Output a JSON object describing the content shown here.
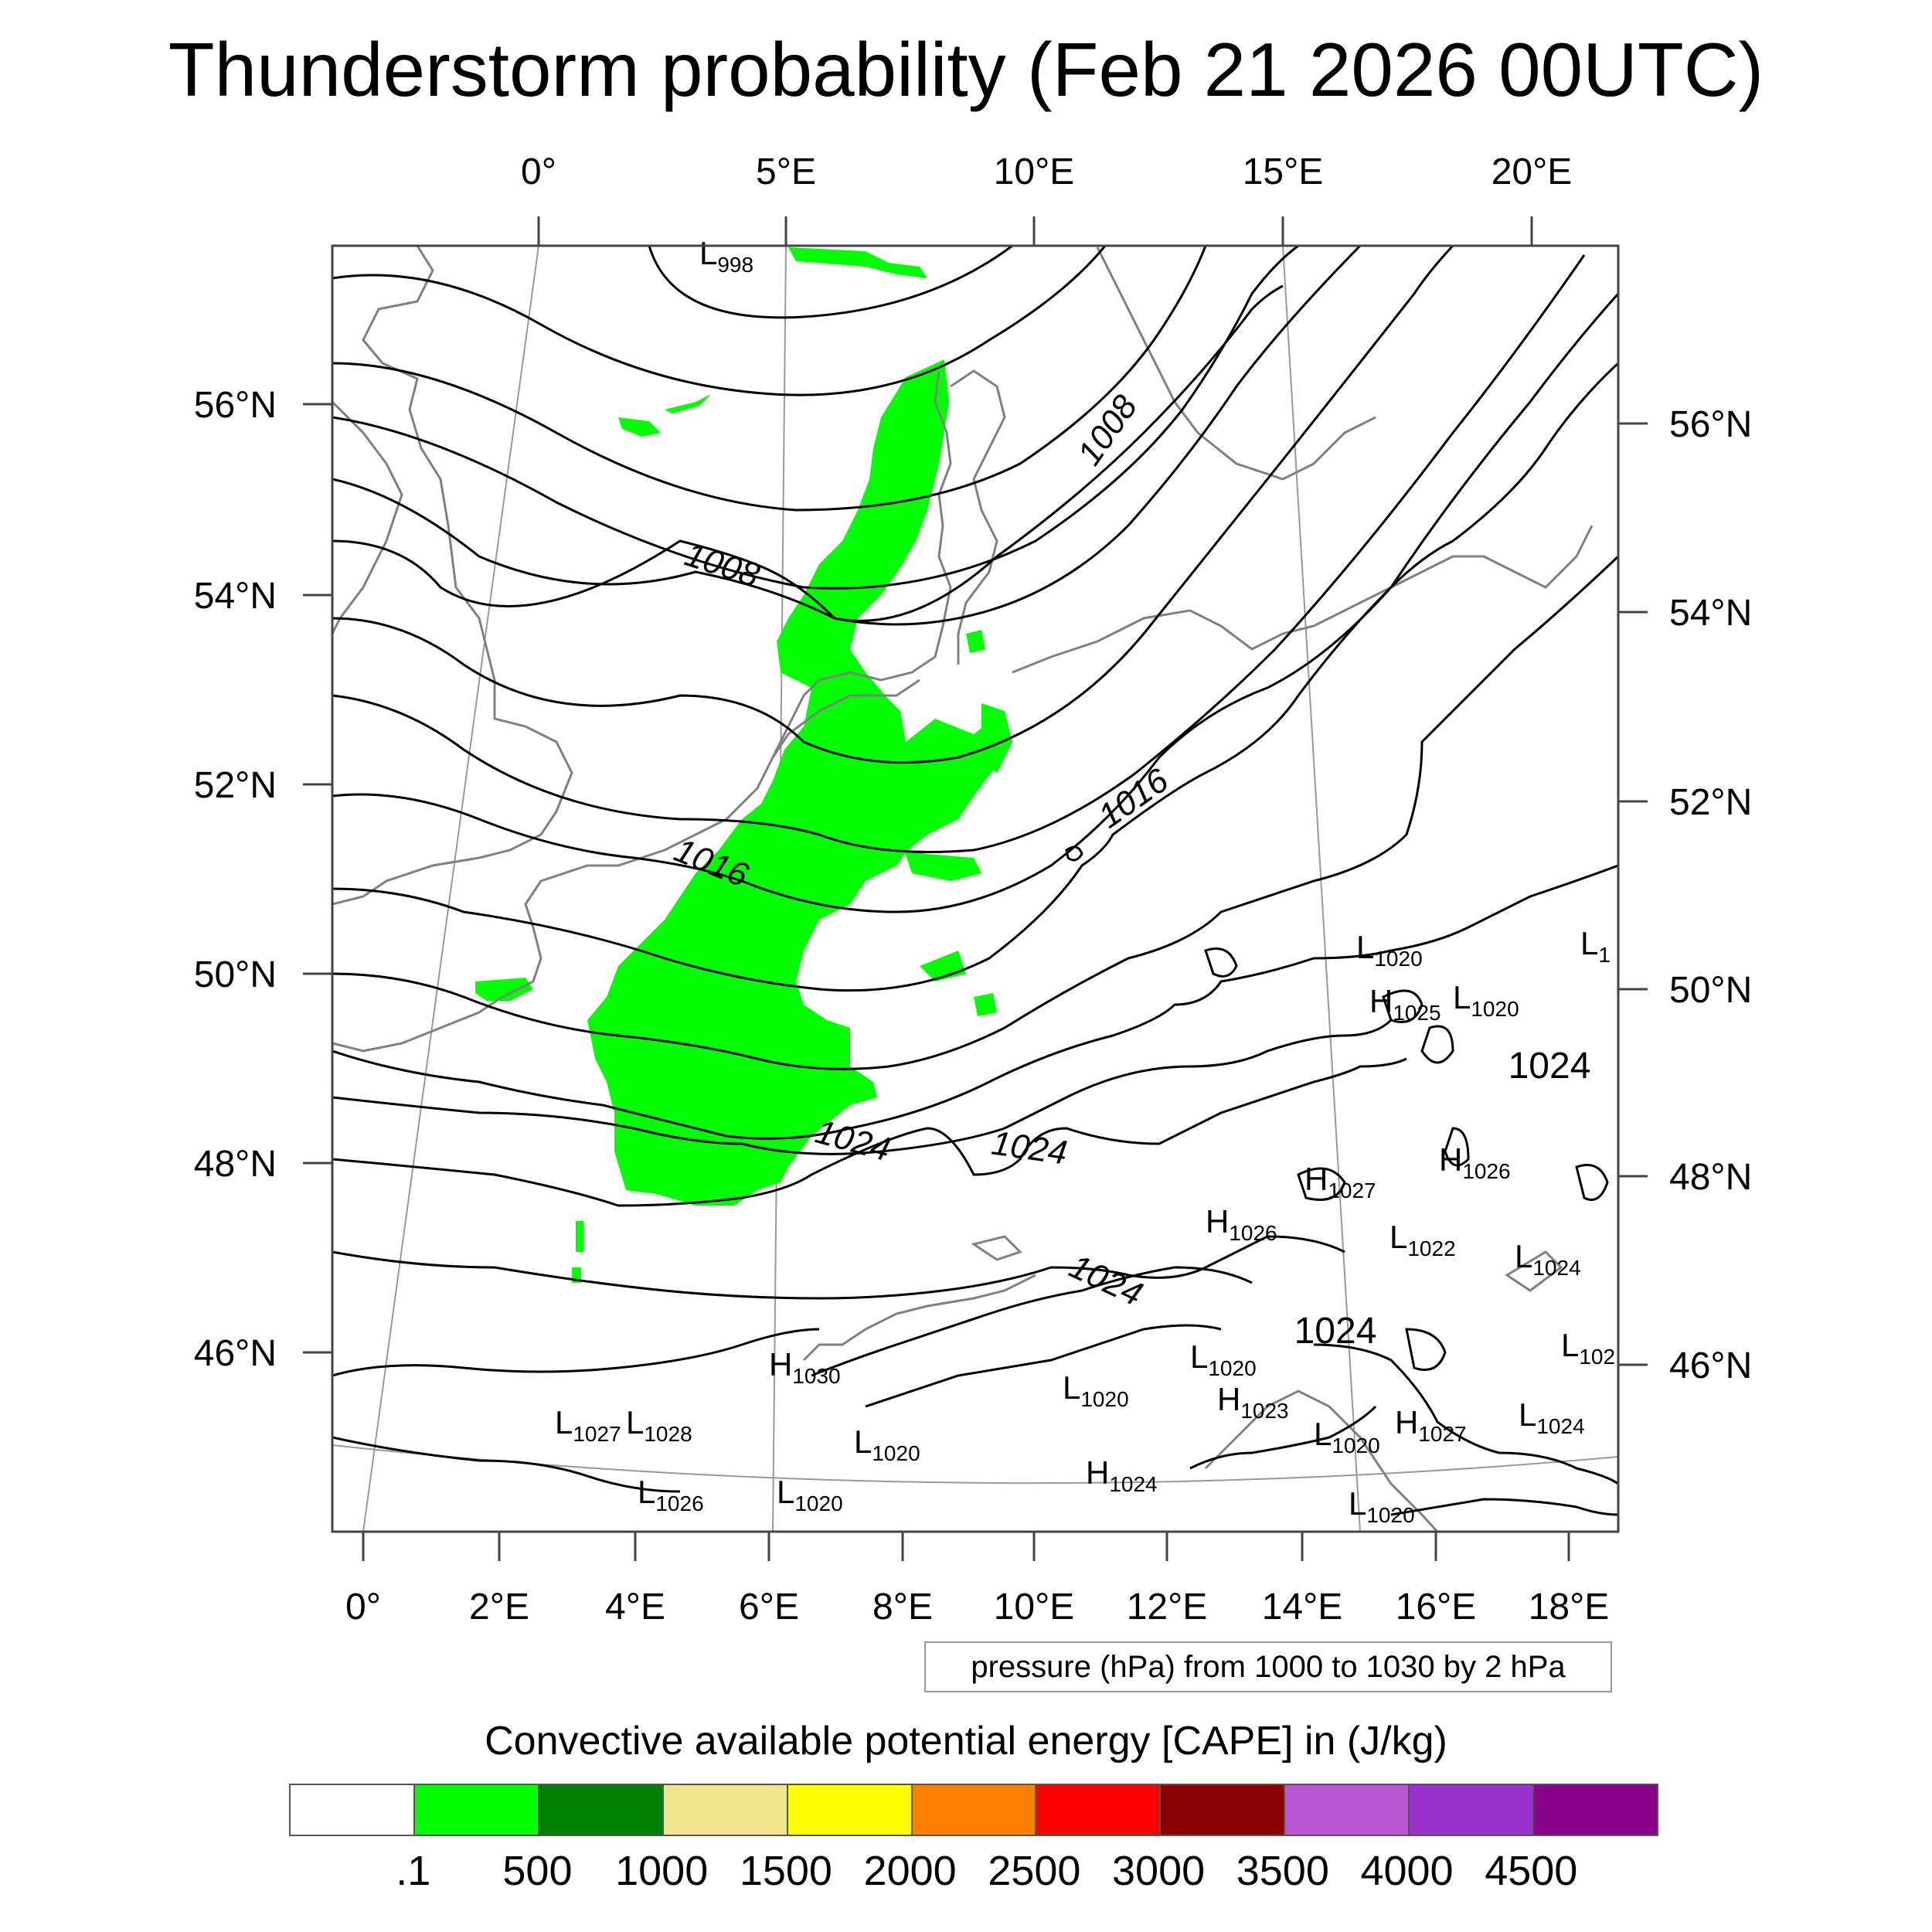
{
  "title": "Thunderstorm probability (Feb 21 2026 00UTC)",
  "top_lon_labels": [
    "0°",
    "5°E",
    "10°E",
    "15°E",
    "20°E"
  ],
  "bottom_lon_labels": [
    "0°",
    "2°E",
    "4°E",
    "6°E",
    "8°E",
    "10°E",
    "12°E",
    "14°E",
    "16°E",
    "18°E"
  ],
  "left_lat_labels": [
    "56°N",
    "54°N",
    "52°N",
    "50°N",
    "48°N",
    "46°N"
  ],
  "right_lat_labels": [
    "56°N",
    "54°N",
    "52°N",
    "50°N",
    "48°N",
    "46°N"
  ],
  "isobar_labels": [
    "1008",
    "1008",
    "1016",
    "1016",
    "1024",
    "1024",
    "1024",
    "1024",
    "1024"
  ],
  "pressure_systems": [
    {
      "type": "L",
      "value": "998"
    },
    {
      "type": "L",
      "value": "1020"
    },
    {
      "type": "L",
      "value": "1"
    },
    {
      "type": "H",
      "value": "1025"
    },
    {
      "type": "L",
      "value": "1020"
    },
    {
      "type": "H",
      "value": "1027"
    },
    {
      "type": "H",
      "value": "1026"
    },
    {
      "type": "H",
      "value": "1026"
    },
    {
      "type": "L",
      "value": "1022"
    },
    {
      "type": "L",
      "value": "1024"
    },
    {
      "type": "L",
      "value": "102"
    },
    {
      "type": "H",
      "value": "1030"
    },
    {
      "type": "L",
      "value": "1020"
    },
    {
      "type": "L",
      "value": "1020"
    },
    {
      "type": "H",
      "value": "1023"
    },
    {
      "type": "H",
      "value": "1027"
    },
    {
      "type": "L",
      "value": "1024"
    },
    {
      "type": "L",
      "value": "1027"
    },
    {
      "type": "L",
      "value": "1028"
    },
    {
      "type": "L",
      "value": "1020"
    },
    {
      "type": "L",
      "value": "1020"
    },
    {
      "type": "L",
      "value": "1026"
    },
    {
      "type": "L",
      "value": "1020"
    },
    {
      "type": "H",
      "value": "1024"
    },
    {
      "type": "L",
      "value": "1020"
    }
  ],
  "info_box": "pressure (hPa) from 1000 to 1030 by 2 hPa",
  "colorbar": {
    "title": "Convective available potential energy [CAPE] in (J/kg)",
    "colors": [
      "#ffffff",
      "#00ff00",
      "#008000",
      "#f0e68c",
      "#ffff00",
      "#ff8000",
      "#ff0000",
      "#8b0000",
      "#ba55d3",
      "#9932cc",
      "#8b008b"
    ],
    "labels": [
      ".1",
      "500",
      "1000",
      "1500",
      "2000",
      "2500",
      "3000",
      "3500",
      "4000",
      "4500"
    ]
  },
  "map_colors": {
    "cape_fill": "#00ff00",
    "isobar": "#000000",
    "coast": "#808080",
    "grid": "#999999"
  }
}
